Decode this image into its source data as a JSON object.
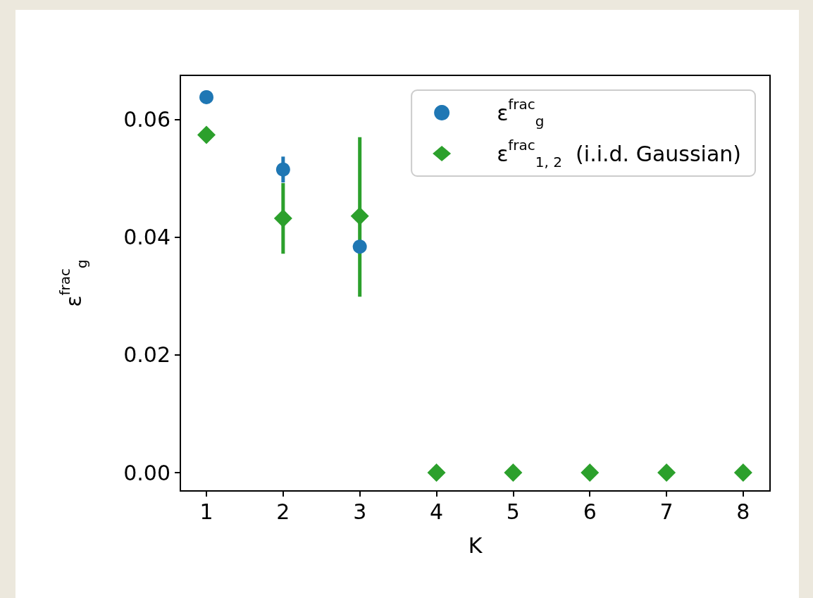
{
  "chart_data": {
    "type": "scatter",
    "xlabel": "K",
    "ylabel": "ε$^{frac}$$_{g}$",
    "x": [
      1,
      2,
      3,
      4,
      5,
      6,
      7,
      8
    ],
    "series": [
      {
        "name": "ε$^{frac}$$_{g}$",
        "color": "#1f77b4",
        "marker": "circle",
        "values": [
          0.0638,
          0.0515,
          0.0384,
          null,
          null,
          null,
          null,
          null
        ],
        "errors": [
          null,
          0.0022,
          null,
          null,
          null,
          null,
          null,
          null
        ]
      },
      {
        "name": "ε$^{frac}$$_{1, 2}$  (i.i.d. Gaussian)",
        "color": "#2ca02c",
        "marker": "diamond",
        "values": [
          0.0574,
          0.0432,
          0.0436,
          0,
          0,
          0,
          0,
          0
        ],
        "errors": [
          null,
          [
            0.0372,
            0.0492
          ],
          [
            0.0299,
            0.057
          ],
          null,
          null,
          null,
          null,
          null
        ]
      }
    ],
    "xlim": [
      0.66,
      8.35
    ],
    "xticks": [
      1,
      2,
      3,
      4,
      5,
      6,
      7,
      8
    ],
    "ylim": [
      -0.0031,
      0.0675
    ],
    "yticks": [
      {
        "value": 0,
        "label": "0.00"
      },
      {
        "value": 0.02,
        "label": "0.02"
      },
      {
        "value": 0.04,
        "label": "0.04"
      },
      {
        "value": 0.06,
        "label": "0.06"
      }
    ],
    "grid": false,
    "legend": "top right"
  }
}
